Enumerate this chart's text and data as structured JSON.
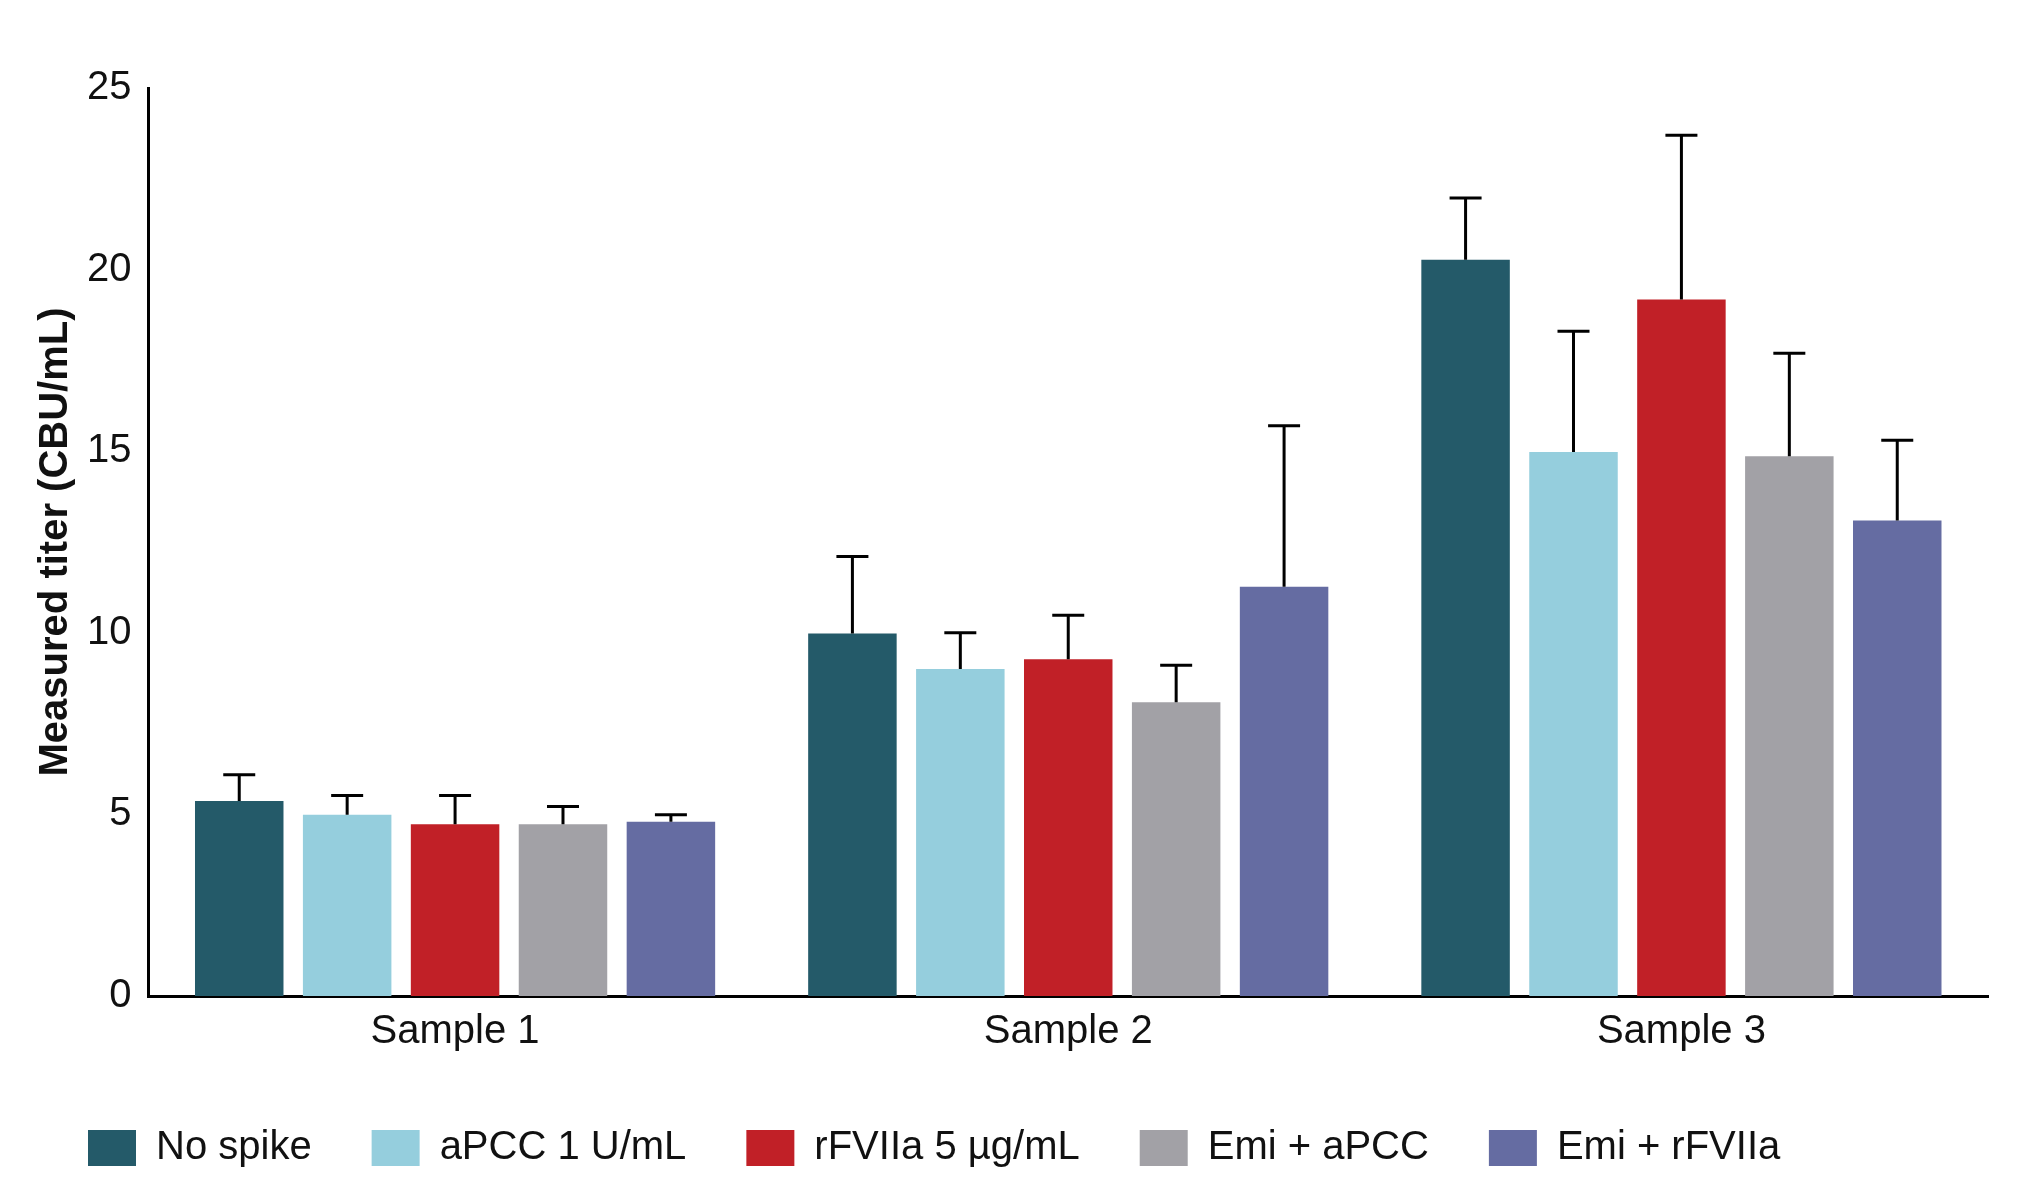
{
  "chart_data": {
    "type": "bar",
    "ylabel": "Measured titer (CBU/mL)",
    "categories": [
      "Sample 1",
      "Sample 2",
      "Sample 3"
    ],
    "series": [
      {
        "name": "No spike",
        "color": "#245a69",
        "values": [
          5.37,
          9.98,
          20.27
        ],
        "errors": [
          [
            5.37,
            6.09
          ],
          [
            9.98,
            12.1
          ],
          [
            20.27,
            21.97
          ]
        ]
      },
      {
        "name": "aPCC 1 U/mL",
        "color": "#95cedd",
        "values": [
          4.99,
          9.0,
          14.98
        ],
        "errors": [
          [
            4.99,
            5.52
          ],
          [
            9.0,
            10.0
          ],
          [
            14.98,
            18.3
          ]
        ]
      },
      {
        "name": "rFVIIa 5 µg/mL",
        "color": "#c12027",
        "values": [
          4.73,
          9.27,
          19.18
        ],
        "errors": [
          [
            4.73,
            5.52
          ],
          [
            9.27,
            10.48
          ],
          [
            19.18,
            23.7
          ]
        ]
      },
      {
        "name": "Emi + aPCC",
        "color": "#a2a1a6",
        "values": [
          4.73,
          8.09,
          14.86
        ],
        "errors": [
          [
            4.73,
            5.22
          ],
          [
            8.09,
            9.11
          ],
          [
            14.86,
            17.7
          ]
        ]
      },
      {
        "name": "Emi + rFVIIa",
        "color": "#656ca2",
        "values": [
          4.8,
          11.27,
          13.09
        ],
        "errors": [
          [
            4.8,
            4.99
          ],
          [
            11.27,
            15.7
          ],
          [
            13.09,
            15.3
          ]
        ]
      }
    ],
    "ylim": [
      0,
      25
    ],
    "yticks": [
      0,
      5,
      10,
      15,
      20,
      25
    ],
    "grid": false,
    "legend": "bottom"
  }
}
